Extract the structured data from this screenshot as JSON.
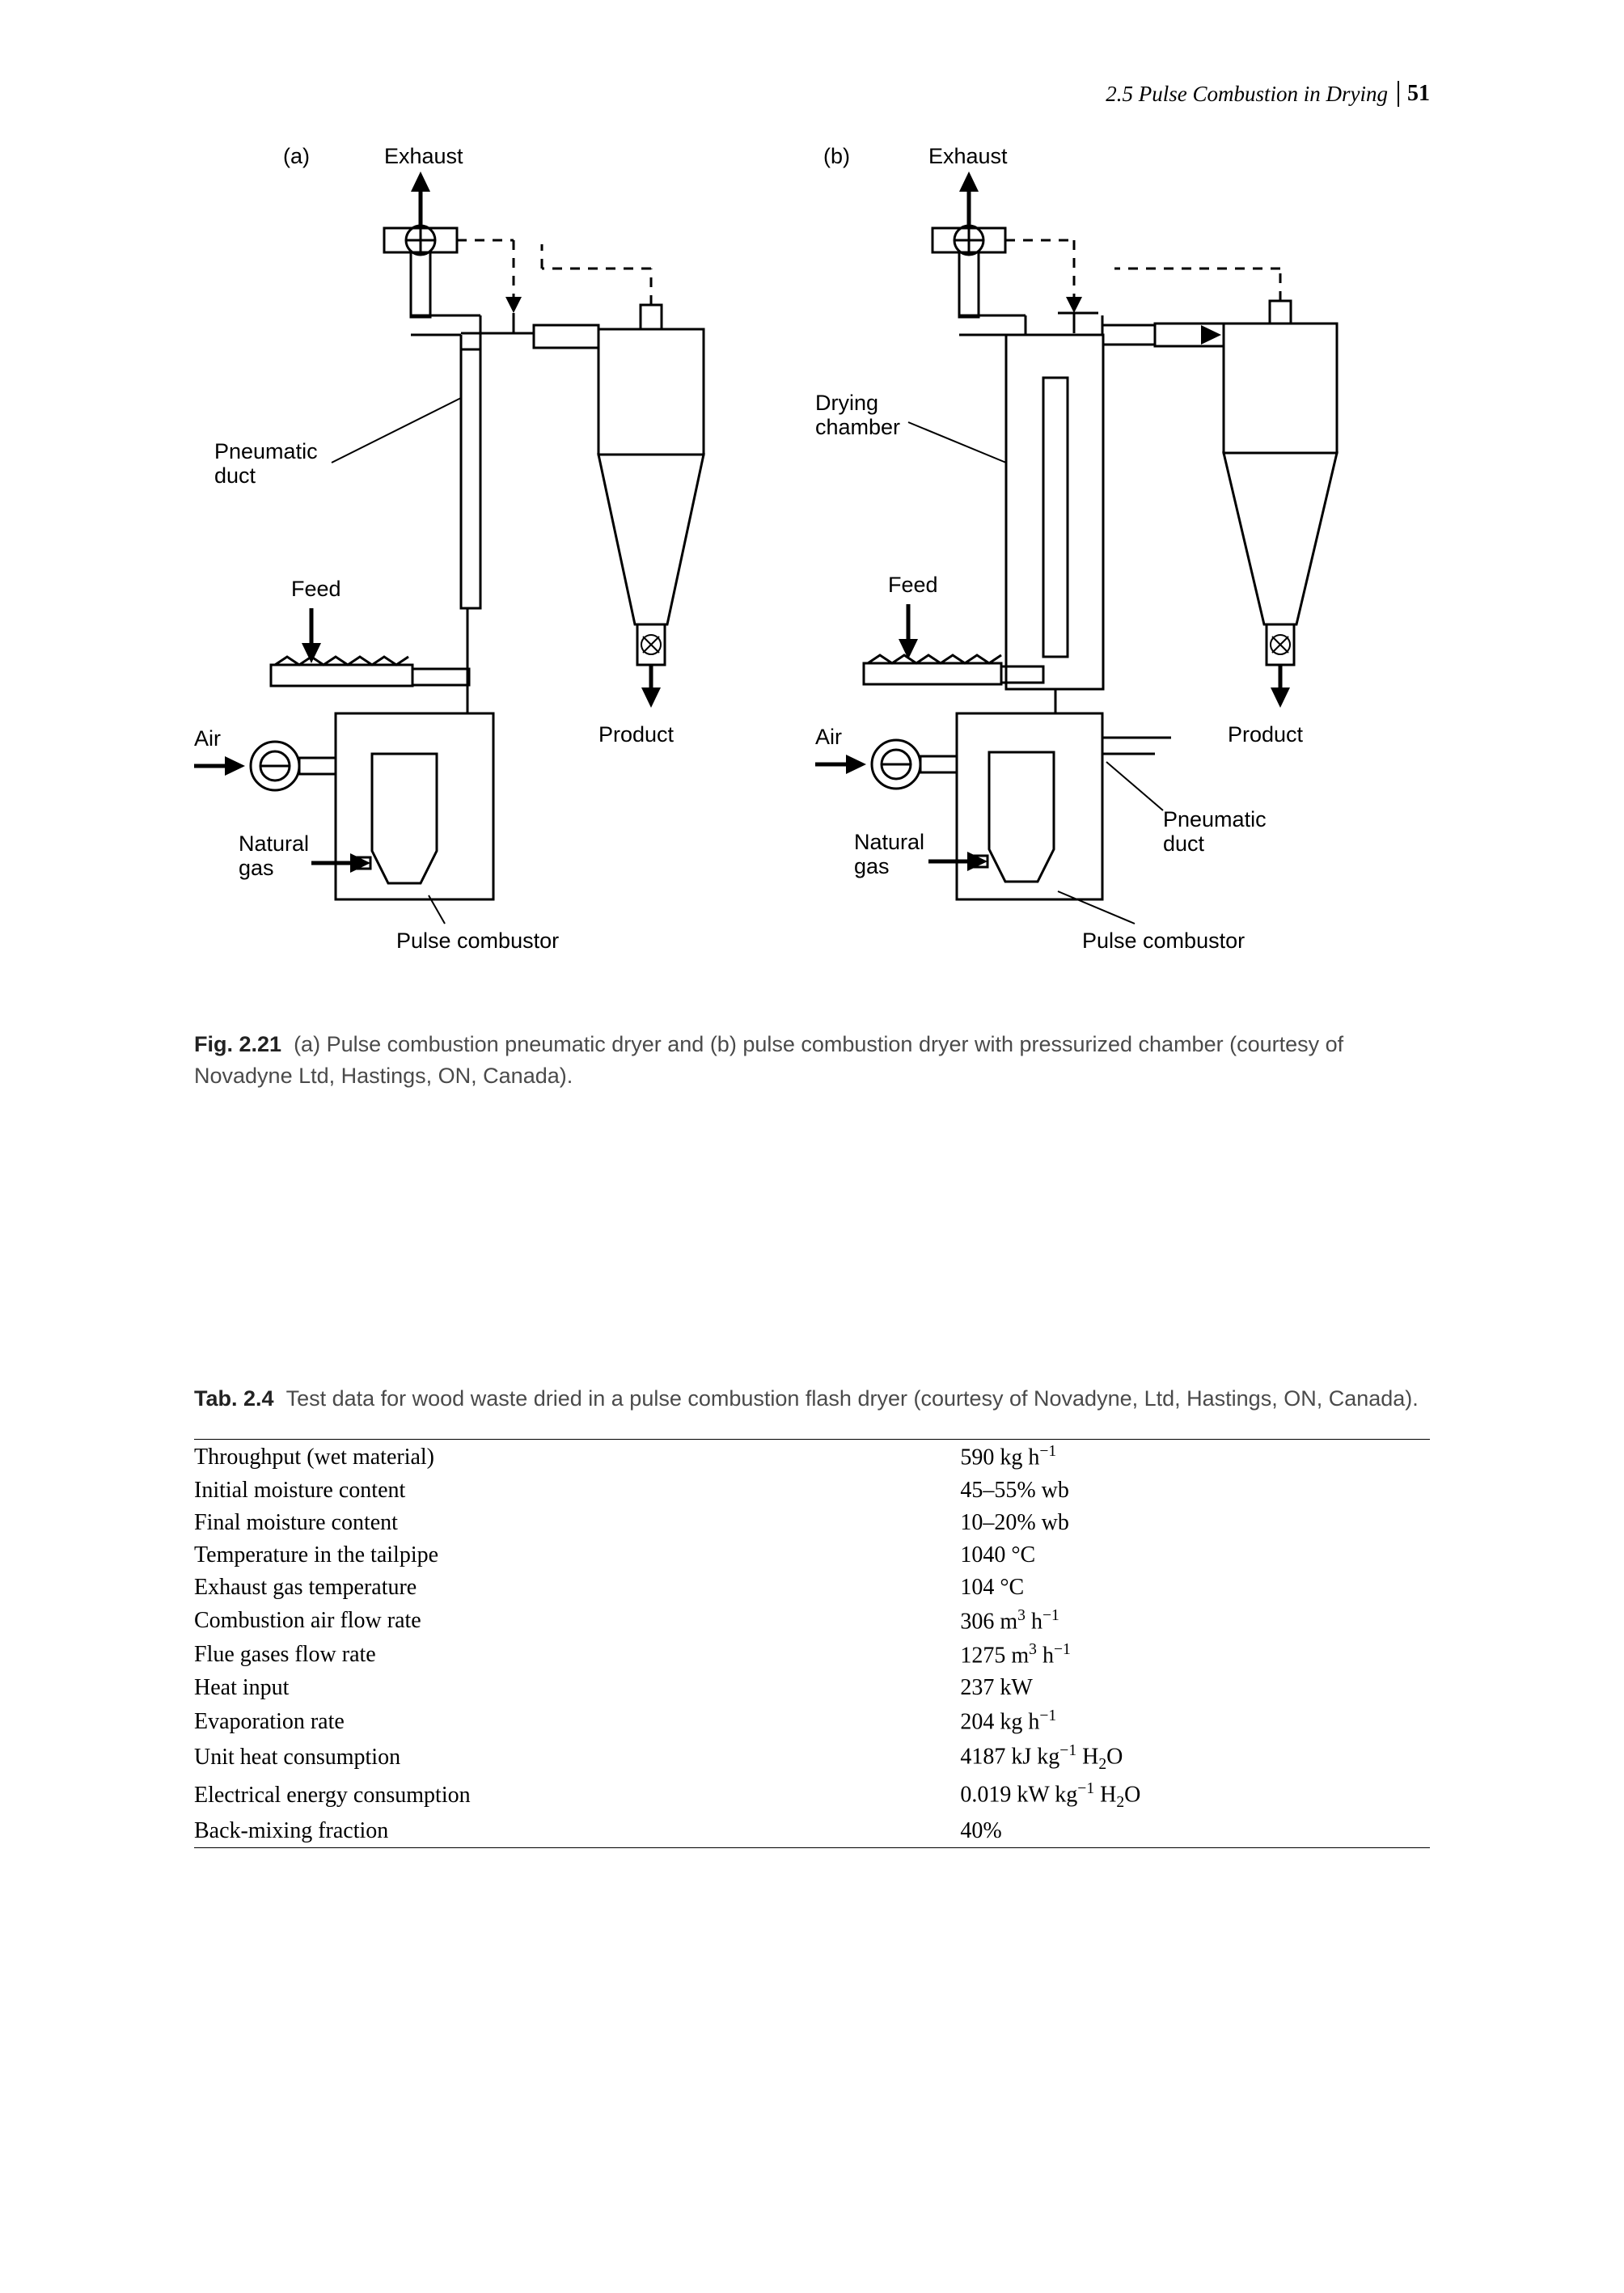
{
  "header": {
    "section": "2.5  Pulse Combustion in Drying",
    "page": "51"
  },
  "figure": {
    "label": "Fig. 2.21",
    "caption_rest": "(a) Pulse combustion pneumatic dryer and (b) pulse combustion dryer with pressurized chamber  (courtesy of Novadyne Ltd, Hastings, ON, Canada).",
    "panel_a_tag": "(a)",
    "panel_b_tag": "(b)",
    "labels": {
      "exhaust": "Exhaust",
      "pneumatic_duct": "Pneumatic\nduct",
      "drying_chamber": "Drying\nchamber",
      "feed": "Feed",
      "product": "Product",
      "air": "Air",
      "natural_gas": "Natural\ngas",
      "pulse_combustor": "Pulse combustor"
    }
  },
  "table": {
    "label": "Tab. 2.4",
    "caption_rest": "Test data for wood waste dried in a pulse combustion flash dryer (courtesy of Novadyne, Ltd, Hastings, ON, Canada).",
    "rows": [
      {
        "param": "Throughput (wet material)",
        "value": "590 kg h<sup>−1</sup>"
      },
      {
        "param": "Initial moisture content",
        "value": "45–55% wb"
      },
      {
        "param": "Final moisture content",
        "value": "10–20% wb"
      },
      {
        "param": "Temperature in the tailpipe",
        "value": "1040 °C"
      },
      {
        "param": "Exhaust gas temperature",
        "value": "104 °C"
      },
      {
        "param": "Combustion air flow rate",
        "value": "306 m<sup>3</sup> h<sup>−1</sup>"
      },
      {
        "param": "Flue gases flow rate",
        "value": "1275 m<sup>3</sup> h<sup>−1</sup>"
      },
      {
        "param": "Heat input",
        "value": "237 kW"
      },
      {
        "param": "Evaporation rate",
        "value": "204 kg h<sup>−1</sup>"
      },
      {
        "param": "Unit heat consumption",
        "value": "4187 kJ kg<sup>−1</sup> H<sub>2</sub>O"
      },
      {
        "param": "Electrical energy consumption",
        "value": "0.019 kW kg<sup>−1</sup> H<sub>2</sub>O"
      },
      {
        "param": "Back-mixing fraction",
        "value": "40%"
      }
    ]
  },
  "style": {
    "bg": "#ffffff",
    "text": "#000000",
    "caption_color": "#4a4a4a",
    "line_stroke": "#000000",
    "line_width": 3
  }
}
